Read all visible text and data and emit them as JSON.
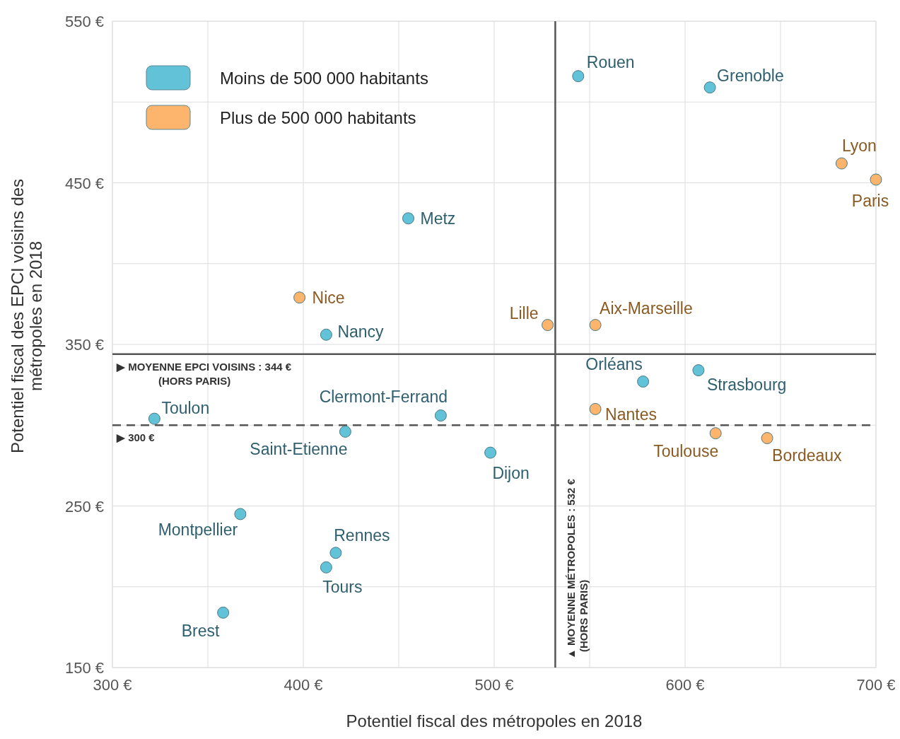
{
  "chart_data": {
    "type": "scatter",
    "xlabel": "Potentiel fiscal des métropoles en 2018",
    "ylabel": "Potentiel fiscal des EPCI voisins des\nmétropoles en 2018",
    "xlim": [
      300,
      700
    ],
    "ylim": [
      150,
      550
    ],
    "xticks": [
      {
        "value": 300,
        "label": "300 €"
      },
      {
        "value": 350,
        "label": null
      },
      {
        "value": 400,
        "label": "400 €"
      },
      {
        "value": 450,
        "label": null
      },
      {
        "value": 500,
        "label": "500 €"
      },
      {
        "value": 550,
        "label": null
      },
      {
        "value": 600,
        "label": "600 €"
      },
      {
        "value": 650,
        "label": null
      },
      {
        "value": 700,
        "label": "700 €"
      }
    ],
    "yticks": [
      {
        "value": 150,
        "label": "150 €"
      },
      {
        "value": 200,
        "label": null
      },
      {
        "value": 250,
        "label": "250 €"
      },
      {
        "value": 300,
        "label": null
      },
      {
        "value": 350,
        "label": "350 €"
      },
      {
        "value": 400,
        "label": null
      },
      {
        "value": 450,
        "label": "450 €"
      },
      {
        "value": 500,
        "label": null
      },
      {
        "value": 550,
        "label": "550 €"
      }
    ],
    "grid": true,
    "legend": "top left",
    "marker": "circle",
    "series": [
      {
        "name": "Moins de 500 000 habitants",
        "color": "#62c2d8",
        "x": [
          544,
          613,
          455,
          412,
          578,
          607,
          472,
          322,
          422,
          498,
          367,
          417,
          412,
          358
        ],
        "values": [
          516,
          509,
          428,
          356,
          327,
          334,
          306,
          304,
          296,
          283,
          245,
          221,
          212,
          184
        ]
      },
      {
        "name": "Plus de 500 000 habitants",
        "color": "#fdb46c",
        "x": [
          682,
          700,
          398,
          528,
          553,
          553,
          616,
          643
        ],
        "values": [
          462,
          452,
          379,
          362,
          362,
          310,
          295,
          292
        ]
      }
    ],
    "ref_lines": [
      {
        "axis": "y",
        "value": 344,
        "label": "▶ MOYENNE EPCI VOISINS : 344 €\n(HORS PARIS)",
        "color": "#555555",
        "line_style": "solid"
      },
      {
        "axis": "y",
        "value": 300,
        "label": "▶ 300 €",
        "color": "#555555",
        "line_style": "dashed"
      },
      {
        "axis": "x",
        "value": 532,
        "label": "▲ MOYENNE MÉTROPOLES : 532 €\n(HORS PARIS)",
        "color": "#555555",
        "line_style": "solid"
      }
    ],
    "annotations": [
      {
        "text": "Rouen",
        "x": 544,
        "y": 516
      },
      {
        "text": "Grenoble",
        "x": 613,
        "y": 509
      },
      {
        "text": "Metz",
        "x": 455,
        "y": 428
      },
      {
        "text": "Nancy",
        "x": 412,
        "y": 356
      },
      {
        "text": "Orléans",
        "x": 578,
        "y": 327
      },
      {
        "text": "Strasbourg",
        "x": 607,
        "y": 334
      },
      {
        "text": "Clermont-Ferrand",
        "x": 472,
        "y": 306
      },
      {
        "text": "Toulon",
        "x": 322,
        "y": 304
      },
      {
        "text": "Saint-Etienne",
        "x": 422,
        "y": 296
      },
      {
        "text": "Dijon",
        "x": 498,
        "y": 283
      },
      {
        "text": "Montpellier",
        "x": 367,
        "y": 245
      },
      {
        "text": "Rennes",
        "x": 417,
        "y": 221
      },
      {
        "text": "Tours",
        "x": 412,
        "y": 212
      },
      {
        "text": "Brest",
        "x": 358,
        "y": 184
      },
      {
        "text": "Lyon",
        "x": 682,
        "y": 462
      },
      {
        "text": "Paris",
        "x": 700,
        "y": 452
      },
      {
        "text": "Nice",
        "x": 398,
        "y": 379
      },
      {
        "text": "Lille",
        "x": 528,
        "y": 362
      },
      {
        "text": "Aix-Marseille",
        "x": 553,
        "y": 362
      },
      {
        "text": "Nantes",
        "x": 553,
        "y": 310
      },
      {
        "text": "Toulouse",
        "x": 616,
        "y": 295
      },
      {
        "text": "Bordeaux",
        "x": 643,
        "y": 292
      }
    ]
  }
}
